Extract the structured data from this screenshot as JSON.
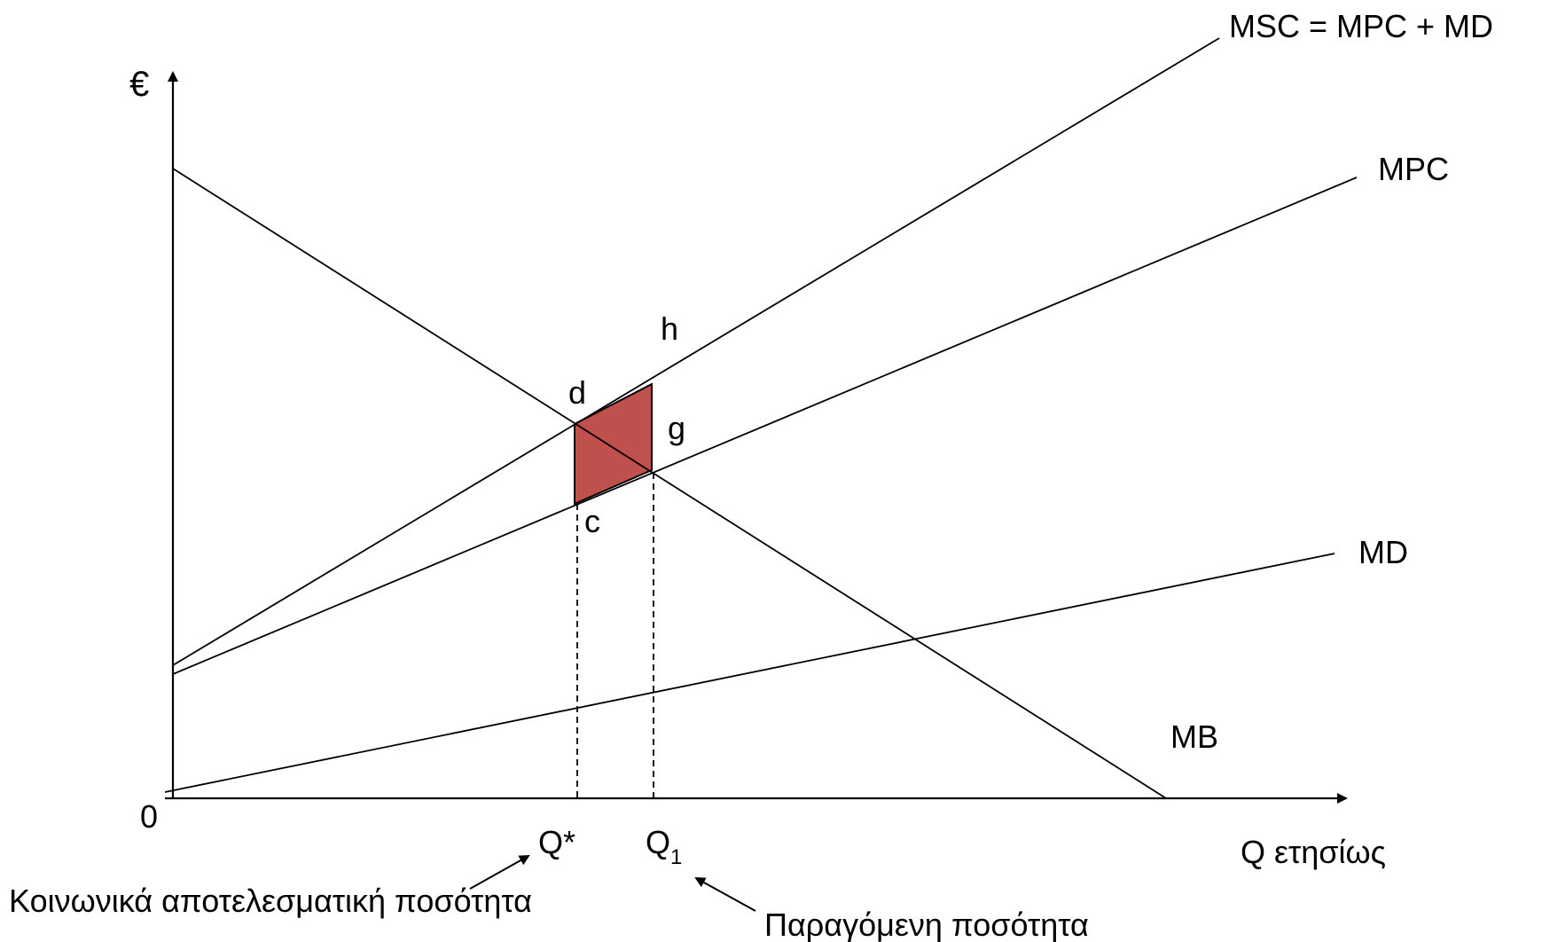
{
  "axes": {
    "y_label": "€",
    "x_label": "Q ετησίως",
    "origin_label": "0"
  },
  "curves": {
    "msc": "MSC = MPC + MD",
    "mpc": "MPC",
    "md": "MD",
    "mb": "MB"
  },
  "points": {
    "d": "d",
    "h": "h",
    "g": "g",
    "c": "c"
  },
  "quantities": {
    "q_star": "Q*",
    "q1_main": "Q",
    "q1_sub": "1"
  },
  "annotations": {
    "efficient": "Κοινωνικά αποτελεσματική ποσότητα",
    "produced": "Παραγόμενη ποσότητα"
  },
  "colors": {
    "deadweight_fill": "#c0504d",
    "line": "#000000"
  }
}
